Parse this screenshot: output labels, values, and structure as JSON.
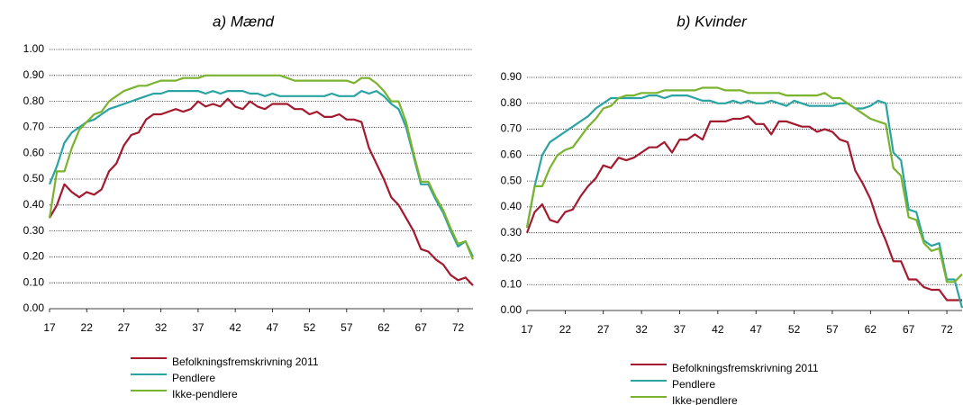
{
  "chart_data": [
    {
      "type": "line",
      "title": "a) Mænd",
      "x": [
        17,
        18,
        19,
        20,
        21,
        22,
        23,
        24,
        25,
        26,
        27,
        28,
        29,
        30,
        31,
        32,
        33,
        34,
        35,
        36,
        37,
        38,
        39,
        40,
        41,
        42,
        43,
        44,
        45,
        46,
        47,
        48,
        49,
        50,
        51,
        52,
        53,
        54,
        55,
        56,
        57,
        58,
        59,
        60,
        61,
        62,
        63,
        64,
        65,
        66,
        67,
        68,
        69,
        70,
        71,
        72,
        73,
        74
      ],
      "xlim": [
        17,
        74
      ],
      "xticks": [
        17,
        22,
        27,
        32,
        37,
        42,
        47,
        52,
        57,
        62,
        67,
        72
      ],
      "ylim": [
        0,
        1
      ],
      "yticks": [
        {
          "value": 0,
          "label": "0.00"
        },
        {
          "value": 0.1,
          "label": "0.10"
        },
        {
          "value": 0.2,
          "label": "0.20"
        },
        {
          "value": 0.3,
          "label": "0.30"
        },
        {
          "value": 0.4,
          "label": "0.40"
        },
        {
          "value": 0.5,
          "label": "0.50"
        },
        {
          "value": 0.6,
          "label": "0.60"
        },
        {
          "value": 0.7,
          "label": "0.70"
        },
        {
          "value": 0.8,
          "label": "0.80"
        },
        {
          "value": 0.9,
          "label": "0.90"
        },
        {
          "value": 1,
          "label": "1.00"
        }
      ],
      "grid": true,
      "series": [
        {
          "name": "Befolkningsfremskrivning 2011",
          "color": "#a3192e",
          "values": [
            0.35,
            0.4,
            0.48,
            0.45,
            0.43,
            0.45,
            0.44,
            0.46,
            0.53,
            0.56,
            0.63,
            0.67,
            0.68,
            0.73,
            0.75,
            0.75,
            0.76,
            0.77,
            0.76,
            0.77,
            0.8,
            0.78,
            0.79,
            0.78,
            0.81,
            0.78,
            0.77,
            0.8,
            0.78,
            0.77,
            0.79,
            0.79,
            0.79,
            0.77,
            0.77,
            0.75,
            0.76,
            0.74,
            0.74,
            0.75,
            0.73,
            0.73,
            0.72,
            0.62,
            0.56,
            0.5,
            0.43,
            0.4,
            0.35,
            0.3,
            0.23,
            0.22,
            0.19,
            0.17,
            0.13,
            0.11,
            0.12,
            0.09
          ]
        },
        {
          "name": "Pendlere",
          "color": "#2aa3a3",
          "values": [
            0.48,
            0.55,
            0.64,
            0.68,
            0.7,
            0.72,
            0.73,
            0.75,
            0.77,
            0.78,
            0.79,
            0.8,
            0.81,
            0.82,
            0.83,
            0.83,
            0.84,
            0.84,
            0.84,
            0.84,
            0.84,
            0.83,
            0.84,
            0.83,
            0.84,
            0.84,
            0.84,
            0.83,
            0.83,
            0.82,
            0.83,
            0.82,
            0.82,
            0.82,
            0.82,
            0.82,
            0.82,
            0.82,
            0.83,
            0.82,
            0.82,
            0.82,
            0.84,
            0.83,
            0.84,
            0.82,
            0.79,
            0.77,
            0.7,
            0.59,
            0.48,
            0.48,
            0.42,
            0.37,
            0.3,
            0.24,
            0.26,
            0.2
          ]
        },
        {
          "name": "Ikke-pendlere",
          "color": "#7ab32e",
          "values": [
            0.35,
            0.53,
            0.53,
            0.62,
            0.69,
            0.72,
            0.75,
            0.76,
            0.8,
            0.82,
            0.84,
            0.85,
            0.86,
            0.86,
            0.87,
            0.88,
            0.88,
            0.88,
            0.89,
            0.89,
            0.89,
            0.9,
            0.9,
            0.9,
            0.9,
            0.9,
            0.9,
            0.9,
            0.9,
            0.9,
            0.9,
            0.9,
            0.89,
            0.88,
            0.88,
            0.88,
            0.88,
            0.88,
            0.88,
            0.88,
            0.88,
            0.87,
            0.89,
            0.89,
            0.87,
            0.84,
            0.8,
            0.8,
            0.72,
            0.6,
            0.49,
            0.49,
            0.43,
            0.38,
            0.31,
            0.25,
            0.26,
            0.19
          ]
        }
      ]
    },
    {
      "type": "line",
      "title": "b) Kvinder",
      "x": [
        17,
        18,
        19,
        20,
        21,
        22,
        23,
        24,
        25,
        26,
        27,
        28,
        29,
        30,
        31,
        32,
        33,
        34,
        35,
        36,
        37,
        38,
        39,
        40,
        41,
        42,
        43,
        44,
        45,
        46,
        47,
        48,
        49,
        50,
        51,
        52,
        53,
        54,
        55,
        56,
        57,
        58,
        59,
        60,
        61,
        62,
        63,
        64,
        65,
        66,
        67,
        68,
        69,
        70,
        71,
        72,
        73,
        74
      ],
      "xlim": [
        17,
        74
      ],
      "xticks": [
        17,
        22,
        27,
        32,
        37,
        42,
        47,
        52,
        57,
        62,
        67,
        72
      ],
      "ylim": [
        0,
        0.9
      ],
      "yticks": [
        {
          "value": 0,
          "label": "0.00"
        },
        {
          "value": 0.1,
          "label": "0.10"
        },
        {
          "value": 0.2,
          "label": "0.20"
        },
        {
          "value": 0.3,
          "label": "0.30"
        },
        {
          "value": 0.4,
          "label": "0.40"
        },
        {
          "value": 0.5,
          "label": "0.50"
        },
        {
          "value": 0.6,
          "label": "0.60"
        },
        {
          "value": 0.7,
          "label": "0.70"
        },
        {
          "value": 0.8,
          "label": "0.80"
        },
        {
          "value": 0.9,
          "label": "0.90"
        }
      ],
      "grid": true,
      "series": [
        {
          "name": "Befolkningsfremskrivning 2011",
          "color": "#a3192e",
          "values": [
            0.3,
            0.38,
            0.41,
            0.35,
            0.34,
            0.38,
            0.39,
            0.44,
            0.48,
            0.51,
            0.56,
            0.55,
            0.59,
            0.58,
            0.59,
            0.61,
            0.63,
            0.63,
            0.65,
            0.61,
            0.66,
            0.66,
            0.68,
            0.66,
            0.73,
            0.73,
            0.73,
            0.74,
            0.74,
            0.75,
            0.72,
            0.72,
            0.68,
            0.73,
            0.73,
            0.72,
            0.71,
            0.71,
            0.69,
            0.7,
            0.69,
            0.66,
            0.65,
            0.54,
            0.49,
            0.43,
            0.34,
            0.27,
            0.19,
            0.19,
            0.12,
            0.12,
            0.09,
            0.08,
            0.08,
            0.04,
            0.04,
            0.04
          ]
        },
        {
          "name": "Pendlere",
          "color": "#2aa3a3",
          "values": [
            0.32,
            0.48,
            0.6,
            0.65,
            0.67,
            0.69,
            0.71,
            0.73,
            0.75,
            0.78,
            0.8,
            0.82,
            0.82,
            0.82,
            0.82,
            0.82,
            0.83,
            0.83,
            0.82,
            0.83,
            0.83,
            0.83,
            0.82,
            0.81,
            0.81,
            0.8,
            0.8,
            0.81,
            0.8,
            0.81,
            0.8,
            0.8,
            0.81,
            0.8,
            0.79,
            0.81,
            0.8,
            0.79,
            0.79,
            0.79,
            0.79,
            0.8,
            0.8,
            0.78,
            0.78,
            0.79,
            0.81,
            0.8,
            0.61,
            0.58,
            0.39,
            0.38,
            0.27,
            0.25,
            0.26,
            0.12,
            0.12,
            0.01
          ]
        },
        {
          "name": "Ikke-pendlere",
          "color": "#7ab32e",
          "values": [
            0.32,
            0.48,
            0.48,
            0.55,
            0.6,
            0.62,
            0.63,
            0.67,
            0.71,
            0.74,
            0.78,
            0.79,
            0.82,
            0.83,
            0.83,
            0.84,
            0.84,
            0.84,
            0.85,
            0.85,
            0.85,
            0.85,
            0.85,
            0.86,
            0.86,
            0.86,
            0.85,
            0.85,
            0.85,
            0.84,
            0.84,
            0.84,
            0.84,
            0.84,
            0.83,
            0.83,
            0.83,
            0.83,
            0.83,
            0.84,
            0.82,
            0.82,
            0.8,
            0.78,
            0.76,
            0.74,
            0.73,
            0.72,
            0.55,
            0.52,
            0.36,
            0.35,
            0.26,
            0.23,
            0.24,
            0.11,
            0.11,
            0.14
          ]
        }
      ]
    }
  ]
}
